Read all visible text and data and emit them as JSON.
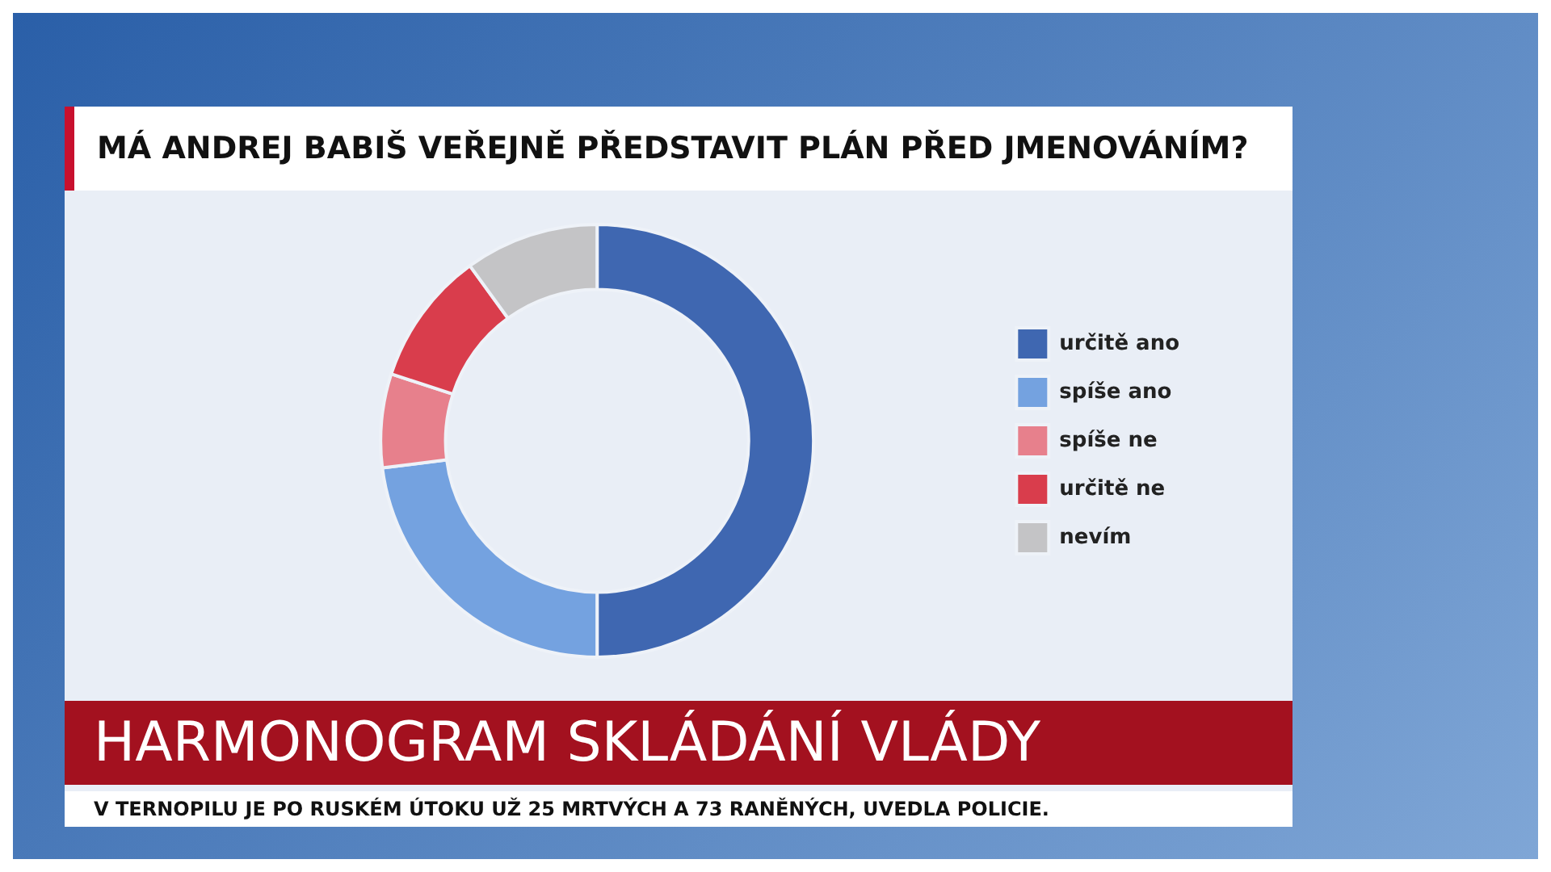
{
  "chart_data": {
    "type": "donut",
    "title": "MÁ ANDREJ BABIŠ VEŘEJNĚ PŘEDSTAVIT PLÁN PŘED JMENOVÁNÍM?",
    "categories": [
      "určitě ano",
      "spíše ano",
      "spíše ne",
      "určitě ne",
      "nevím"
    ],
    "values": [
      50,
      23,
      7,
      10,
      10
    ],
    "colors": [
      "#3f67b1",
      "#74a2e0",
      "#e7808c",
      "#d93d4c",
      "#c4c4c6"
    ],
    "legend": "right",
    "annotations": [
      "HARMONOGRAM SKLÁDÁNÍ VLÁDY",
      "V TERNOPILU JE PO RUSKÉM ÚTOKU UŽ 25 MRTVÝCH A 73 RANĚNÝCH, UVEDLA POLICIE."
    ]
  }
}
